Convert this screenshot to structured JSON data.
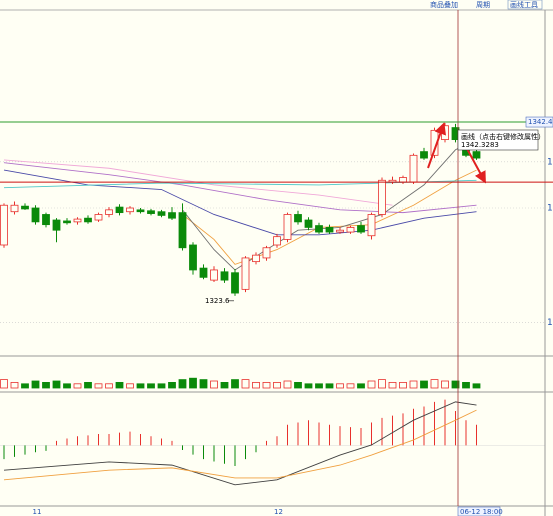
{
  "toolbar": {
    "tabs": [
      "商品叠加",
      "周期",
      "画线工具"
    ]
  },
  "chart_data": {
    "type": "candlestick",
    "categories": [
      null,
      null,
      null,
      "11",
      null,
      null,
      null,
      null,
      null,
      null,
      null,
      null,
      null,
      null,
      null,
      null,
      null,
      null,
      null,
      null,
      null,
      null,
      null,
      null,
      null,
      null,
      "12",
      null,
      null,
      null,
      null,
      null,
      null,
      null,
      null,
      null,
      null,
      null,
      null,
      null,
      null,
      null,
      null,
      null,
      null,
      null
    ],
    "open": [
      1329.1,
      1332.7,
      1333.3,
      1333.1,
      1332.4,
      1331.8,
      1331.7,
      1331.6,
      1332.0,
      1331.8,
      1332.4,
      1333.2,
      1332.7,
      1332.9,
      1332.8,
      1332.7,
      1332.6,
      1332.6,
      1329.1,
      1326.6,
      1325.3,
      1326.2,
      1326.1,
      1324.3,
      1327.3,
      1327.7,
      1329.1,
      1329.7,
      1332.4,
      1331.8,
      1331.2,
      1331.0,
      1330.5,
      1330.5,
      1331.2,
      1330.1,
      1332.4,
      1335.9,
      1335.9,
      1335.9,
      1339.2,
      1338.8,
      1340.5,
      1341.8,
      1340.5,
      1339.2
    ],
    "high": [
      1333.6,
      1333.8,
      1333.6,
      1333.4,
      1332.6,
      1332.0,
      1332.0,
      1332.1,
      1332.3,
      1332.6,
      1333.2,
      1333.5,
      1333.3,
      1333.1,
      1333.0,
      1332.9,
      1333.2,
      1333.6,
      1329.4,
      1327.0,
      1326.8,
      1326.6,
      1326.5,
      1327.9,
      1328.3,
      1329.0,
      1330.3,
      1332.6,
      1332.8,
      1332.1,
      1331.5,
      1331.3,
      1331.0,
      1331.2,
      1331.6,
      1332.6,
      1336.4,
      1336.5,
      1336.6,
      1339.0,
      1339.6,
      1341.8,
      1342.3,
      1342.2,
      1341.0,
      1339.6
    ],
    "low": [
      1328.8,
      1332.4,
      1332.9,
      1331.3,
      1331.0,
      1329.4,
      1331.3,
      1331.3,
      1331.4,
      1331.6,
      1332.1,
      1332.3,
      1332.4,
      1332.5,
      1332.3,
      1332.1,
      1331.8,
      1328.5,
      1325.9,
      1325.4,
      1325.1,
      1325.0,
      1323.6,
      1324.0,
      1327.0,
      1327.4,
      1328.8,
      1329.4,
      1331.3,
      1330.7,
      1330.3,
      1330.3,
      1330.3,
      1330.3,
      1330.3,
      1329.7,
      1332.1,
      1335.7,
      1335.7,
      1335.7,
      1338.3,
      1338.5,
      1340.2,
      1340.2,
      1338.6,
      1338.3
    ],
    "close": [
      1333.4,
      1333.4,
      1333.0,
      1331.6,
      1331.3,
      1330.7,
      1331.5,
      1331.9,
      1331.6,
      1332.4,
      1332.9,
      1332.6,
      1333.1,
      1332.7,
      1332.5,
      1332.3,
      1332.0,
      1328.8,
      1326.4,
      1325.6,
      1326.4,
      1325.3,
      1323.9,
      1327.7,
      1328.0,
      1328.8,
      1330.0,
      1332.4,
      1331.6,
      1331.0,
      1330.5,
      1330.5,
      1330.7,
      1331.0,
      1330.5,
      1332.4,
      1336.1,
      1336.1,
      1336.4,
      1338.8,
      1338.5,
      1341.5,
      1342.0,
      1340.5,
      1338.8,
      1338.5
    ],
    "up_color": "#e8302c",
    "down_color": "#0a8a0a",
    "ylim": [
      1317.2,
      1355.6
    ],
    "yticks": [
      {
        "value": 1338.1,
        "label": "1"
      },
      {
        "value": 1333.1,
        "label": "1"
      },
      {
        "value": 1320.7,
        "label": "1"
      }
    ],
    "grid": true,
    "low_label": "1323.6",
    "overlays": [
      {
        "color": "#f0a040",
        "x": [
          17,
          20,
          22,
          26,
          30,
          35,
          39,
          43,
          45
        ],
        "values": [
          1332.4,
          1329.7,
          1327.0,
          1328.6,
          1331.0,
          1331.3,
          1333.4,
          1336.1,
          1337.2
        ]
      },
      {
        "color": "#4a4aa8",
        "x": [
          0,
          8,
          15,
          20,
          26,
          30,
          35,
          40,
          45
        ],
        "values": [
          1337.2,
          1335.6,
          1335.1,
          1332.4,
          1330.2,
          1330.2,
          1330.7,
          1332.0,
          1332.7
        ]
      },
      {
        "color": "#b070c8",
        "x": [
          0,
          10,
          17,
          25,
          32,
          38,
          45
        ],
        "values": [
          1338.0,
          1336.7,
          1335.6,
          1334.0,
          1332.9,
          1332.6,
          1333.4
        ]
      },
      {
        "color": "#f0a8d8",
        "x": [
          0,
          10,
          20,
          30,
          37
        ],
        "values": [
          1338.3,
          1337.4,
          1335.6,
          1334.5,
          1333.4
        ]
      },
      {
        "color": "#50c8c8",
        "x": [
          0,
          15,
          30,
          45
        ],
        "values": [
          1335.3,
          1335.8,
          1335.6,
          1336.1
        ]
      },
      {
        "color": "#707070",
        "x": [
          17,
          20,
          22,
          25,
          28,
          32,
          36,
          40,
          43,
          45
        ],
        "values": [
          1332.9,
          1328.6,
          1326.4,
          1328.6,
          1330.7,
          1331.0,
          1332.4,
          1335.6,
          1339.4,
          1340.5
        ]
      }
    ],
    "hlines": [
      {
        "value": 1342.4,
        "label": "1342.4",
        "color": "#2e9e2e"
      },
      {
        "value": 1335.9,
        "color": "#cc1111"
      }
    ],
    "tooltip": {
      "title": "画线（点击右键修改属性）",
      "value": 1342.3283
    },
    "crosshair_label": "06-12 18:00",
    "volume": {
      "values": [
        6,
        4,
        3,
        5,
        4,
        5,
        3,
        3,
        4,
        3,
        3,
        4,
        3,
        3,
        3,
        3,
        4,
        6,
        7,
        6,
        5,
        4,
        6,
        6,
        4,
        4,
        4,
        5,
        4,
        3,
        3,
        3,
        3,
        3,
        3,
        5,
        6,
        4,
        4,
        5,
        5,
        6,
        5,
        5,
        4,
        3
      ],
      "ylim": [
        0,
        20
      ]
    },
    "macd": {
      "values": [
        -0.3,
        -0.25,
        -0.2,
        -0.15,
        -0.12,
        0.1,
        0.15,
        0.2,
        0.22,
        0.25,
        0.25,
        0.28,
        0.3,
        0.25,
        0.2,
        0.15,
        0.1,
        -0.1,
        -0.2,
        -0.3,
        -0.35,
        -0.4,
        -0.45,
        -0.3,
        -0.15,
        0.1,
        0.2,
        0.45,
        0.5,
        0.55,
        0.5,
        0.45,
        0.42,
        0.4,
        0.38,
        0.5,
        0.6,
        0.65,
        0.7,
        0.8,
        0.85,
        0.95,
        1.0,
        0.75,
        0.55,
        0.45
      ],
      "ylim": [
        -1.3,
        1.1
      ],
      "lines": [
        {
          "color": "#404040",
          "x": [
            0,
            10,
            16,
            22,
            26,
            32,
            35,
            39,
            43,
            45
          ],
          "values": [
            -0.54,
            -0.36,
            -0.43,
            -0.86,
            -0.75,
            -0.21,
            0.01,
            0.55,
            0.95,
            0.88
          ]
        },
        {
          "color": "#f0a040",
          "x": [
            0,
            10,
            16,
            22,
            26,
            32,
            35,
            39,
            43,
            45
          ],
          "values": [
            -0.75,
            -0.54,
            -0.49,
            -0.71,
            -0.71,
            -0.43,
            -0.21,
            0.12,
            0.55,
            0.77
          ]
        }
      ]
    }
  }
}
